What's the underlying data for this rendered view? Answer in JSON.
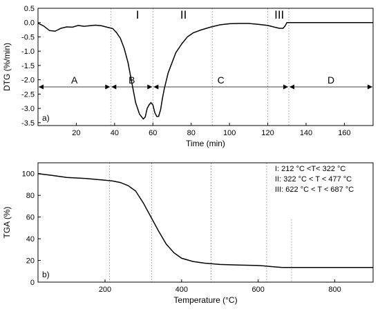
{
  "chart_data": [
    {
      "panel": "a)",
      "type": "line",
      "xlabel": "Time (min)",
      "ylabel": "DTG (%/min)",
      "xlim": [
        0,
        175
      ],
      "ylim": [
        -3.6,
        0.5
      ],
      "xticks": [
        20,
        40,
        60,
        80,
        100,
        120,
        140,
        160
      ],
      "yticks": [
        0.5,
        0.0,
        -0.5,
        -1.0,
        -1.5,
        -2.0,
        -2.5,
        -3.0,
        -3.5
      ],
      "grid": false,
      "series": [
        {
          "x": [
            0,
            3,
            6,
            9,
            12,
            15,
            18,
            21,
            24,
            27,
            30,
            33,
            36,
            39,
            41,
            43,
            45,
            47,
            49,
            51,
            53,
            55,
            56,
            57,
            58,
            59,
            60,
            61,
            62,
            63,
            64,
            65,
            66,
            68,
            70,
            72,
            75,
            78,
            81,
            85,
            90,
            95,
            100,
            105,
            110,
            115,
            120,
            123,
            126,
            128,
            129,
            130,
            131,
            132,
            140,
            150,
            160,
            175
          ],
          "y": [
            -0.02,
            -0.12,
            -0.28,
            -0.3,
            -0.2,
            -0.15,
            -0.16,
            -0.1,
            -0.13,
            -0.11,
            -0.09,
            -0.11,
            -0.16,
            -0.21,
            -0.35,
            -0.55,
            -0.9,
            -1.4,
            -2.1,
            -2.8,
            -3.2,
            -3.37,
            -3.3,
            -3.0,
            -2.88,
            -2.8,
            -2.88,
            -3.15,
            -3.28,
            -3.28,
            -3.05,
            -2.65,
            -2.3,
            -1.75,
            -1.4,
            -1.05,
            -0.75,
            -0.5,
            -0.36,
            -0.26,
            -0.16,
            -0.08,
            -0.04,
            -0.03,
            -0.03,
            -0.06,
            -0.1,
            -0.15,
            -0.2,
            -0.2,
            -0.12,
            0.0,
            0.0,
            0.0,
            0.0,
            0.0,
            0.0,
            0.0
          ]
        }
      ],
      "stage_lines_x": [
        38,
        60,
        91,
        120,
        131
      ],
      "stages": [
        "I",
        "II",
        "III"
      ],
      "stage_label_x": [
        52,
        76,
        126
      ],
      "regions": [
        {
          "label": "A",
          "from": 0,
          "to": 38
        },
        {
          "label": "B",
          "from": 38,
          "to": 60
        },
        {
          "label": "C",
          "from": 60,
          "to": 131
        },
        {
          "label": "D",
          "from": 131,
          "to": 175
        }
      ],
      "region_arrow_y": -2.25
    },
    {
      "panel": "b)",
      "type": "line",
      "xlabel": "Temperature (°C)",
      "ylabel": "TGA (%)",
      "xlim": [
        25,
        900
      ],
      "ylim": [
        0,
        110
      ],
      "xticks": [
        200,
        400,
        600,
        800
      ],
      "yticks": [
        0,
        20,
        40,
        60,
        80,
        100
      ],
      "grid": false,
      "series": [
        {
          "x": [
            25,
            60,
            100,
            150,
            200,
            220,
            240,
            260,
            280,
            300,
            320,
            340,
            360,
            380,
            400,
            430,
            460,
            477,
            500,
            550,
            600,
            620,
            640,
            660,
            670,
            680,
            700,
            800,
            900
          ],
          "y": [
            100,
            98.5,
            96.5,
            95.5,
            94,
            93.2,
            91.8,
            89,
            84,
            73,
            60,
            47,
            35,
            27,
            22,
            19,
            17.5,
            17,
            16.3,
            15.8,
            15.3,
            14.8,
            14.2,
            13.6,
            13.5,
            13.5,
            13.5,
            13.5,
            13.5
          ]
        }
      ],
      "stage_lines_x": [
        212,
        322,
        477,
        622,
        687
      ],
      "stage_annotations": [
        "I: 212 °C <T< 322 °C",
        "II: 322 °C < T < 477 °C",
        "III: 622 °C < T < 687 °C"
      ]
    }
  ]
}
